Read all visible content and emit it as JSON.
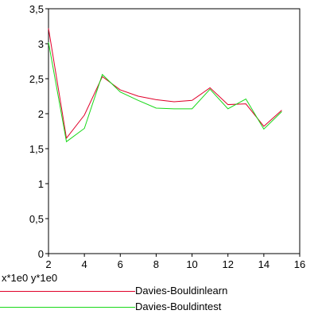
{
  "chart_data": {
    "type": "line",
    "x": [
      2,
      3,
      4,
      5,
      6,
      7,
      8,
      9,
      10,
      11,
      12,
      13,
      14,
      15
    ],
    "series": [
      {
        "name": "Davies-Bouldinlearn",
        "color": "#e0002a",
        "values": [
          3.22,
          1.65,
          1.98,
          2.53,
          2.34,
          2.25,
          2.2,
          2.17,
          2.19,
          2.37,
          2.13,
          2.14,
          1.82,
          2.05
        ]
      },
      {
        "name": "Davies-Bouldintest",
        "color": "#18d818",
        "values": [
          3.02,
          1.6,
          1.79,
          2.56,
          2.31,
          2.19,
          2.08,
          2.07,
          2.07,
          2.35,
          2.07,
          2.21,
          1.78,
          2.03
        ]
      }
    ],
    "xlim": [
      2,
      16
    ],
    "ylim": [
      0,
      3.5
    ],
    "xticks": [
      2,
      4,
      6,
      8,
      10,
      12,
      14,
      16
    ],
    "yticks": [
      0,
      0.5,
      1,
      1.5,
      2,
      2.5,
      3,
      3.5
    ],
    "xtick_labels": [
      "2",
      "4",
      "6",
      "8",
      "10",
      "12",
      "14",
      "16"
    ],
    "ytick_labels": [
      "0",
      "0,5",
      "1",
      "1,5",
      "2",
      "2,5",
      "3",
      "3,5"
    ],
    "grid": false,
    "legend_position": "bottom",
    "scale_note": "x*1e0  y*1e0"
  }
}
